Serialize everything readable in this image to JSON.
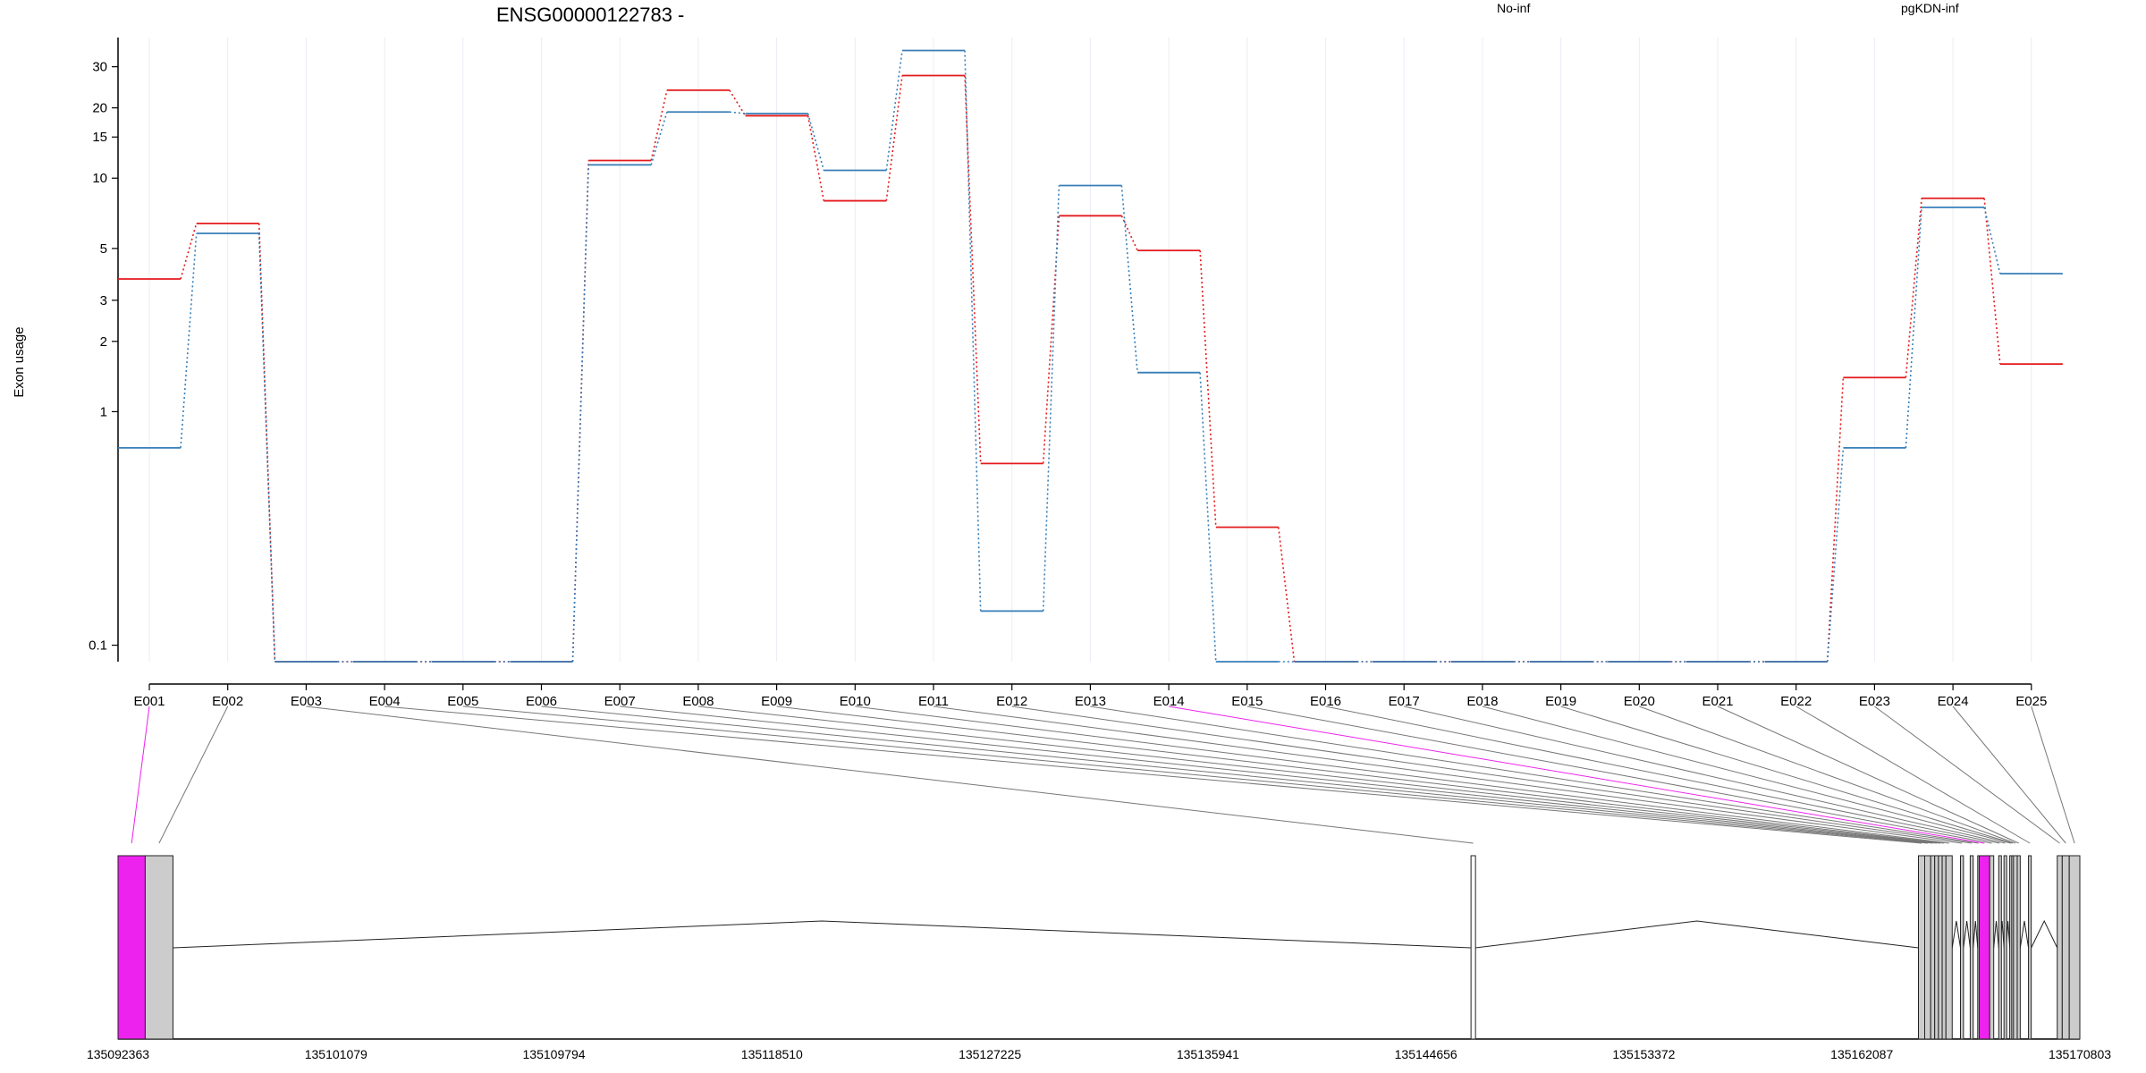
{
  "chart_data": {
    "type": "line",
    "title": "ENSG00000122783 -",
    "ylabel": "Exon usage",
    "yscale": "log",
    "ylim": [
      0.085,
      40
    ],
    "yticks": [
      0.1,
      1,
      2,
      3,
      5,
      10,
      15,
      20,
      30
    ],
    "ytick_labels": [
      "0.1",
      "1",
      "2",
      "3",
      "5",
      "10",
      "15",
      "20",
      "30"
    ],
    "grid": "vertical, faint",
    "legend_position": "top",
    "categories": [
      "E001",
      "E002",
      "E003",
      "E004",
      "E005",
      "E006",
      "E007",
      "E008",
      "E009",
      "E010",
      "E011",
      "E012",
      "E013",
      "E014",
      "E015",
      "E016",
      "E017",
      "E018",
      "E019",
      "E020",
      "E021",
      "E022",
      "E023",
      "E024",
      "E025"
    ],
    "series": [
      {
        "name": "No-inf",
        "color": "#e41a1c",
        "values": [
          3.7,
          6.4,
          0.08,
          0.08,
          0.08,
          0.08,
          11.9,
          23.8,
          18.5,
          8.0,
          27.5,
          0.6,
          6.9,
          4.9,
          0.32,
          0.08,
          0.08,
          0.08,
          0.08,
          0.08,
          0.08,
          0.08,
          1.4,
          8.2,
          1.6
        ]
      },
      {
        "name": "pgKDN-inf",
        "color": "#377eb8",
        "values": [
          0.7,
          5.8,
          0.08,
          0.08,
          0.08,
          0.08,
          11.4,
          19.2,
          18.9,
          10.8,
          35.2,
          0.14,
          9.3,
          1.47,
          0.08,
          0.08,
          0.08,
          0.08,
          0.08,
          0.08,
          0.08,
          0.08,
          0.7,
          7.5,
          3.9
        ]
      }
    ],
    "gene_model": {
      "coord_labels": [
        "135092363",
        "135101079",
        "135109794",
        "135118510",
        "135127225",
        "135135941",
        "135144656",
        "135153372",
        "135162087",
        "135170803"
      ],
      "coord_start": 135092363,
      "coord_end": 135170803,
      "highlight_color": "#ee22ee",
      "exons": [
        {
          "name": "E001",
          "start": 135092363,
          "end": 135093450,
          "highlight": true
        },
        {
          "name": "E002",
          "start": 135093450,
          "end": 135094560,
          "highlight": false
        },
        {
          "name": "E003",
          "start": 135146460,
          "end": 135146640,
          "highlight": false
        },
        {
          "name": "E004",
          "start": 135164350,
          "end": 135164600,
          "highlight": false
        },
        {
          "name": "E005",
          "start": 135164600,
          "end": 135164840,
          "highlight": false
        },
        {
          "name": "E006",
          "start": 135164840,
          "end": 135165000,
          "highlight": false
        },
        {
          "name": "E007",
          "start": 135165000,
          "end": 135165150,
          "highlight": false
        },
        {
          "name": "E008",
          "start": 135165150,
          "end": 135165300,
          "highlight": false
        },
        {
          "name": "E009",
          "start": 135165300,
          "end": 135165450,
          "highlight": false
        },
        {
          "name": "E010",
          "start": 135165450,
          "end": 135165700,
          "highlight": false
        },
        {
          "name": "E011",
          "start": 135166030,
          "end": 135166150,
          "highlight": false
        },
        {
          "name": "E012",
          "start": 135166420,
          "end": 135166540,
          "highlight": false
        },
        {
          "name": "E013",
          "start": 135166720,
          "end": 135166780,
          "highlight": false
        },
        {
          "name": "E014",
          "start": 135166780,
          "end": 135167200,
          "highlight": true
        },
        {
          "name": "E015",
          "start": 135167200,
          "end": 135167360,
          "highlight": false
        },
        {
          "name": "E016",
          "start": 135167560,
          "end": 135167620,
          "highlight": false
        },
        {
          "name": "E017",
          "start": 135167770,
          "end": 135167860,
          "highlight": false
        },
        {
          "name": "E018",
          "start": 135168000,
          "end": 135168080,
          "highlight": false
        },
        {
          "name": "E019",
          "start": 135168080,
          "end": 135168150,
          "highlight": false
        },
        {
          "name": "E020",
          "start": 135168150,
          "end": 135168300,
          "highlight": false
        },
        {
          "name": "E021",
          "start": 135168300,
          "end": 135168420,
          "highlight": false
        },
        {
          "name": "E022",
          "start": 135168750,
          "end": 135168860,
          "highlight": false
        },
        {
          "name": "E023",
          "start": 135169900,
          "end": 135170100,
          "highlight": false
        },
        {
          "name": "E024",
          "start": 135170100,
          "end": 135170380,
          "highlight": false
        },
        {
          "name": "E025",
          "start": 135170380,
          "end": 135170803,
          "highlight": false
        }
      ]
    }
  }
}
